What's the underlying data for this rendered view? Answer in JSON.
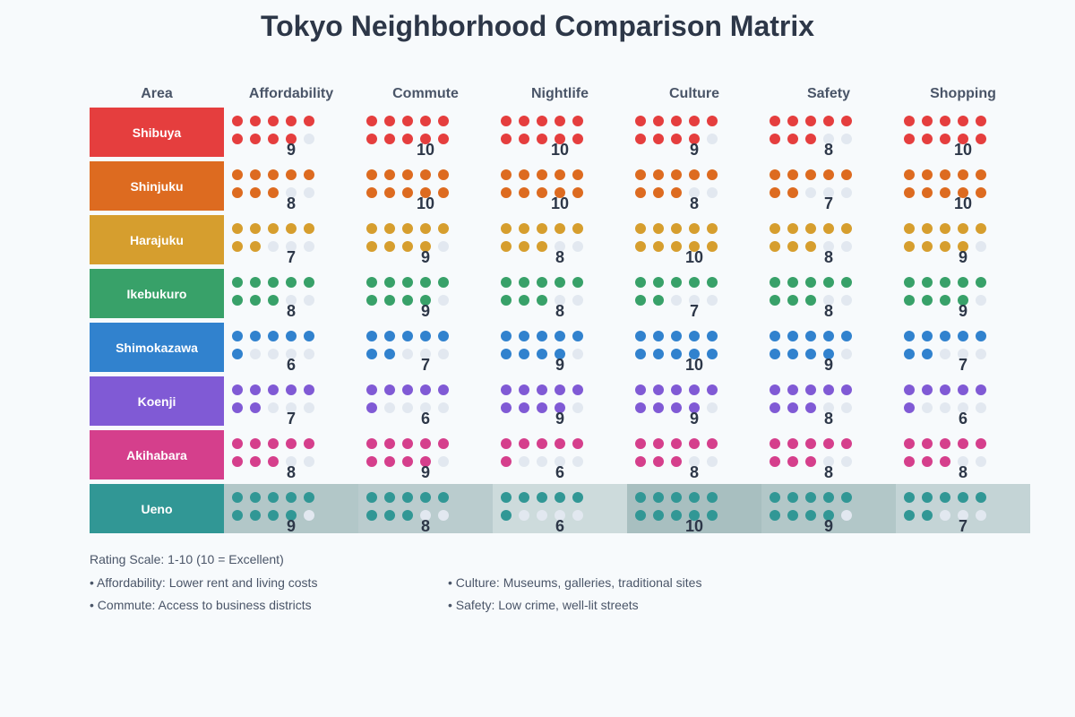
{
  "title": "Tokyo Neighborhood Comparison Matrix",
  "header": {
    "area": "Area",
    "columns": [
      "Affordability",
      "Commute",
      "Nightlife",
      "Culture",
      "Safety",
      "Shopping"
    ]
  },
  "empty_dot_color": "#e2e8f0",
  "highlight_row": "Ueno",
  "rows": [
    {
      "area": "Shibuya",
      "color": "#e53e3e",
      "values": [
        9,
        10,
        10,
        9,
        8,
        10
      ]
    },
    {
      "area": "Shinjuku",
      "color": "#dd6b20",
      "values": [
        8,
        10,
        10,
        8,
        7,
        10
      ]
    },
    {
      "area": "Harajuku",
      "color": "#d69e2e",
      "values": [
        7,
        9,
        8,
        10,
        8,
        9
      ]
    },
    {
      "area": "Ikebukuro",
      "color": "#38a169",
      "values": [
        8,
        9,
        8,
        7,
        8,
        9
      ]
    },
    {
      "area": "Shimokazawa",
      "color": "#3182ce",
      "values": [
        6,
        7,
        9,
        10,
        9,
        7
      ]
    },
    {
      "area": "Koenji",
      "color": "#805ad5",
      "values": [
        7,
        6,
        9,
        9,
        8,
        6
      ]
    },
    {
      "area": "Akihabara",
      "color": "#d53f8c",
      "values": [
        8,
        9,
        6,
        8,
        8,
        8
      ]
    },
    {
      "area": "Ueno",
      "color": "#319795",
      "values": [
        9,
        8,
        6,
        10,
        9,
        7
      ]
    }
  ],
  "footer": {
    "scale": "Rating Scale: 1-10 (10 = Excellent)",
    "notes": [
      "• Affordability: Lower rent and living costs",
      "• Culture: Museums, galleries, traditional sites",
      "• Commute: Access to business districts",
      "• Safety: Low crime, well-lit streets"
    ]
  },
  "chart_data": {
    "type": "heatmap",
    "title": "Tokyo Neighborhood Comparison Matrix",
    "encoding": "dot matrix (10 dots per cell, filled = score) with numeric label",
    "categories": [
      "Affordability",
      "Commute",
      "Nightlife",
      "Culture",
      "Safety",
      "Shopping"
    ],
    "row_labels": [
      "Shibuya",
      "Shinjuku",
      "Harajuku",
      "Ikebukuro",
      "Shimokazawa",
      "Koenji",
      "Akihabara",
      "Ueno"
    ],
    "series": [
      {
        "name": "Shibuya",
        "values": [
          9,
          10,
          10,
          9,
          8,
          10
        ]
      },
      {
        "name": "Shinjuku",
        "values": [
          8,
          10,
          10,
          8,
          7,
          10
        ]
      },
      {
        "name": "Harajuku",
        "values": [
          7,
          9,
          8,
          10,
          8,
          9
        ]
      },
      {
        "name": "Ikebukuro",
        "values": [
          8,
          9,
          8,
          7,
          8,
          9
        ]
      },
      {
        "name": "Shimokazawa",
        "values": [
          6,
          7,
          9,
          10,
          9,
          7
        ]
      },
      {
        "name": "Koenji",
        "values": [
          7,
          6,
          9,
          9,
          8,
          6
        ]
      },
      {
        "name": "Akihabara",
        "values": [
          8,
          9,
          6,
          8,
          8,
          8
        ]
      },
      {
        "name": "Ueno",
        "values": [
          9,
          8,
          6,
          10,
          9,
          7
        ]
      }
    ],
    "scale": [
      1,
      10
    ],
    "annotations": [
      "Rating Scale: 1-10 (10 = Excellent)"
    ],
    "highlighted_row": "Ueno"
  }
}
